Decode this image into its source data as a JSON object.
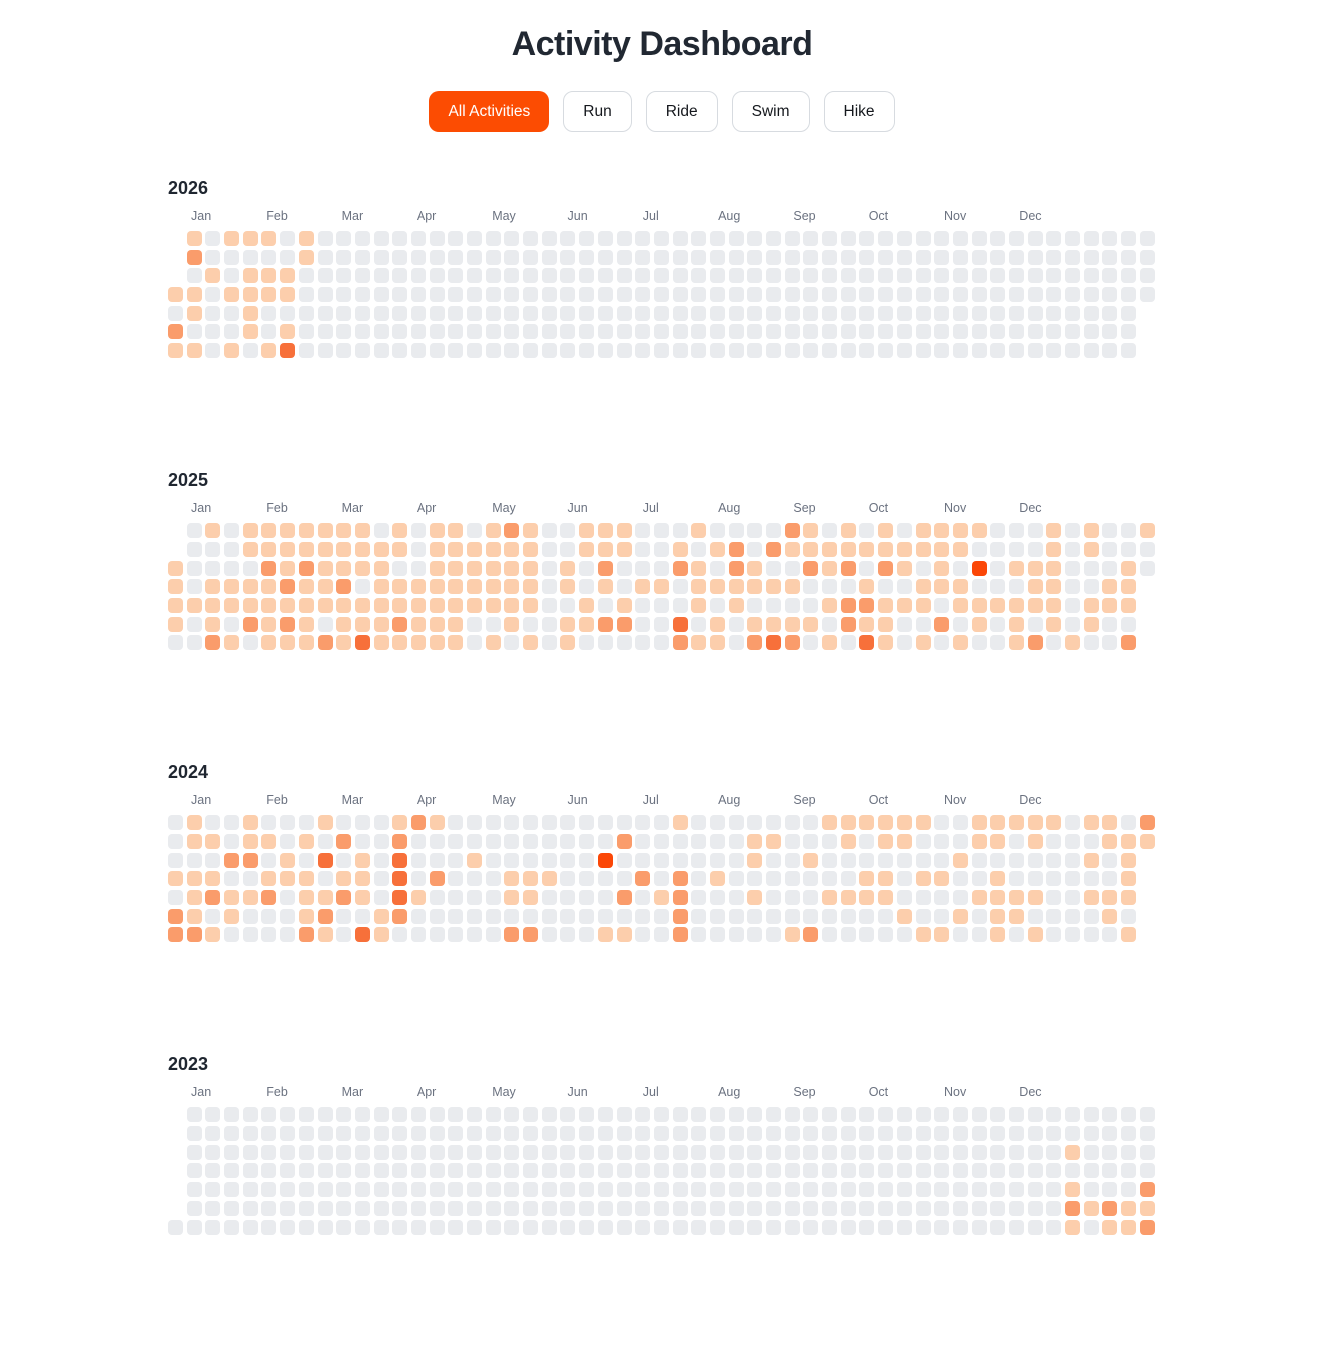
{
  "title": "Activity Dashboard",
  "filters": [
    {
      "label": "All Activities",
      "active": true
    },
    {
      "label": "Run",
      "active": false
    },
    {
      "label": "Ride",
      "active": false
    },
    {
      "label": "Swim",
      "active": false
    },
    {
      "label": "Hike",
      "active": false
    }
  ],
  "colors": {
    "accent": "#fc4c02",
    "button_border": "#d7dbe0",
    "month_label": "#6b7280",
    "levels": [
      "#e9ebee",
      "#fcceac",
      "#fa9c6b",
      "#f7703a",
      "#fb4707"
    ]
  },
  "months": [
    "Jan",
    "Feb",
    "Mar",
    "Apr",
    "May",
    "Jun",
    "Jul",
    "Aug",
    "Sep",
    "Oct",
    "Nov",
    "Dec"
  ],
  "chart_data": {
    "type": "heatmap",
    "title": "Activity Dashboard",
    "legend_position": "none",
    "grid": "off",
    "rows_meaning": "days of week, Monday (top) through Sunday (bottom)",
    "columns_meaning": "53 weeks per year, January (left) through December (right)",
    "cell_encoding": "each week is a 7-char string (Mon..Sun); '.' = day outside year, digits 0-4 = activity intensity level",
    "intensity_scale": [
      0,
      1,
      2,
      3,
      4
    ],
    "years": [
      {
        "year": "2026",
        "weeks": [
          "...1021",
          "1201101",
          "0010000",
          "1001001",
          "1011110",
          "1011001",
          "0011013",
          "1100000",
          "0000000",
          "0000000",
          "0000000",
          "0000000",
          "0000000",
          "0000000",
          "0000000",
          "0000000",
          "0000000",
          "0000000",
          "0000000",
          "0000000",
          "0000000",
          "0000000",
          "0000000",
          "0000000",
          "0000000",
          "0000000",
          "0000000",
          "0000000",
          "0000000",
          "0000000",
          "0000000",
          "0000000",
          "0000000",
          "0000000",
          "0000000",
          "0000000",
          "0000000",
          "0000000",
          "0000000",
          "0000000",
          "0000000",
          "0000000",
          "0000000",
          "0000000",
          "0000000",
          "0000000",
          "0000000",
          "0000000",
          "0000000",
          "0000000",
          "0000000",
          "0000000",
          "0000..."
        ]
      },
      {
        "year": "2025",
        "weeks": [
          "..11110",
          "0000100",
          "1001112",
          "0001101",
          "1101120",
          "1121111",
          "1112121",
          "1121111",
          "1111102",
          "1112111",
          "1110113",
          "0111111",
          "1101121",
          "0001111",
          "1111111",
          "1111111",
          "0111100",
          "1111101",
          "2111110",
          "1111101",
          "0000000",
          "0011011",
          "1100110",
          "1121020",
          "1100120",
          "0001000",
          "0001000",
          "0120032",
          "1011101",
          "0101011",
          "0221100",
          "0011012",
          "0201013",
          "2101012",
          "1120010",
          "0110101",
          "1120220",
          "0101213",
          "1120111",
          "0110100",
          "1101101",
          "1111020",
          "1101101",
          "1040110",
          "0000100",
          "0010111",
          "0011102",
          "1111110",
          "0000001",
          "1100110",
          "0001100",
          "0011102",
          "100...."
        ]
      },
      {
        "year": "2024",
        "weeks": [
          "0001022",
          "1101112",
          "0101201",
          "0020110",
          "1120100",
          "0101200",
          "0011000",
          "0101112",
          "1030121",
          "0201200",
          "0011103",
          "0000011",
          "1233320",
          "2000100",
          "1002000",
          "0000000",
          "0010000",
          "0000000",
          "0001102",
          "0001102",
          "0001000",
          "0000000",
          "0000000",
          "0040001",
          "0200201",
          "0002000",
          "0000100",
          "1002222",
          "0000000",
          "0001000",
          "0000000",
          "0110100",
          "0100000",
          "0000001",
          "0010002",
          "1000100",
          "1100100",
          "1001100",
          "1101100",
          "1100010",
          "1001001",
          "0001001",
          "0010010",
          "1100100",
          "1101111",
          "1000110",
          "1100101",
          "1000000",
          "0000000",
          "1010100",
          "1100110",
          "0111101",
          "21....."
        ]
      },
      {
        "year": "2023",
        "weeks": [
          "......0",
          "0000000",
          "0000000",
          "0000000",
          "0000000",
          "0000000",
          "0000000",
          "0000000",
          "0000000",
          "0000000",
          "0000000",
          "0000000",
          "0000000",
          "0000000",
          "0000000",
          "0000000",
          "0000000",
          "0000000",
          "0000000",
          "0000000",
          "0000000",
          "0000000",
          "0000000",
          "0000000",
          "0000000",
          "0000000",
          "0000000",
          "0000000",
          "0000000",
          "0000000",
          "0000000",
          "0000000",
          "0000000",
          "0000000",
          "0000000",
          "0000000",
          "0000000",
          "0000000",
          "0000000",
          "0000000",
          "0000000",
          "0000000",
          "0000000",
          "0000000",
          "0000000",
          "0000000",
          "0000000",
          "0000000",
          "0010121",
          "0000010",
          "0000021",
          "0000011",
          "0000212"
        ]
      }
    ]
  }
}
